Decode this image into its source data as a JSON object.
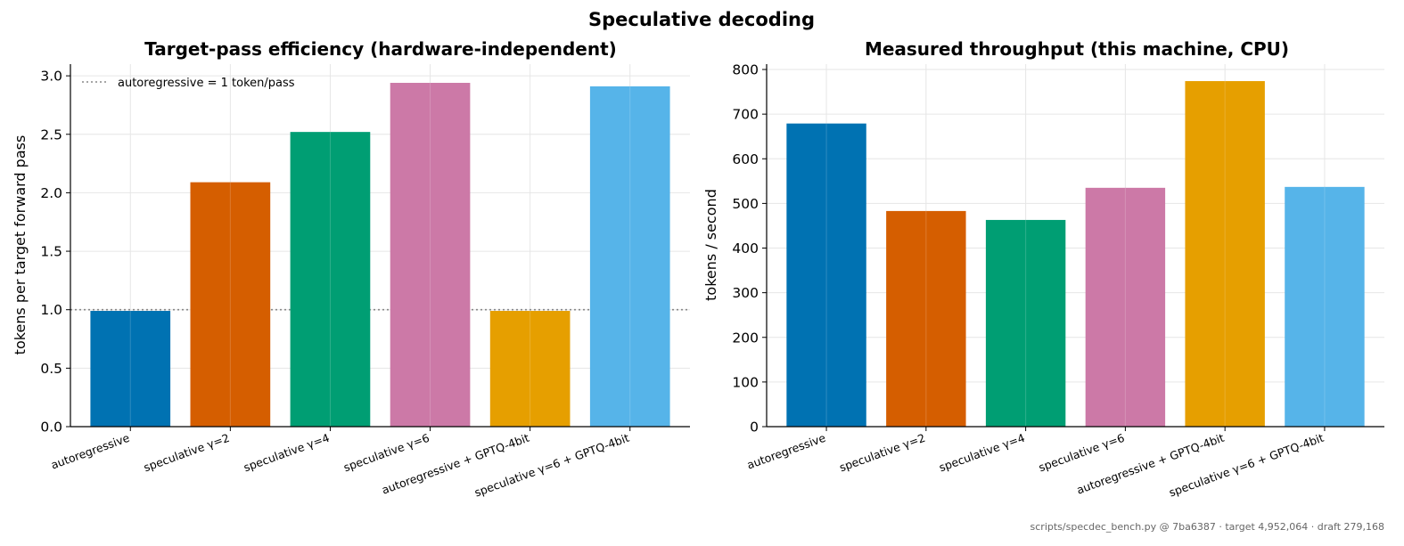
{
  "suptitle": "Speculative decoding",
  "footer": "scripts/specdec_bench.py @ 7ba6387 · target 4,952,064 · draft 279,168",
  "chart_data": [
    {
      "type": "bar",
      "title": "Target-pass efficiency (hardware-independent)",
      "xlabel": "",
      "ylabel": "tokens per target forward pass",
      "ylim": [
        0,
        3.1
      ],
      "yticks": [
        0.0,
        0.5,
        1.0,
        1.5,
        2.0,
        2.5,
        3.0
      ],
      "ytick_labels": [
        "0.0",
        "0.5",
        "1.0",
        "1.5",
        "2.0",
        "2.5",
        "3.0"
      ],
      "grid": true,
      "categories": [
        "autoregressive",
        "speculative γ=2",
        "speculative γ=4",
        "speculative γ=6",
        "autoregressive + GPTQ-4bit",
        "speculative γ=6 + GPTQ-4bit"
      ],
      "values": [
        0.99,
        2.09,
        2.52,
        2.94,
        0.99,
        2.91
      ],
      "colors": [
        "#0072b2",
        "#d55e00",
        "#009e73",
        "#cc79a7",
        "#e69f00",
        "#56b4e9"
      ],
      "reference_line": {
        "y": 1.0,
        "style": "dotted",
        "color": "#888888",
        "label": "autoregressive = 1 token/pass"
      },
      "legend": "top-left"
    },
    {
      "type": "bar",
      "title": "Measured throughput (this machine, CPU)",
      "xlabel": "",
      "ylabel": "tokens / second",
      "ylim": [
        0,
        812
      ],
      "yticks": [
        0,
        100,
        200,
        300,
        400,
        500,
        600,
        700,
        800
      ],
      "ytick_labels": [
        "0",
        "100",
        "200",
        "300",
        "400",
        "500",
        "600",
        "700",
        "800"
      ],
      "grid": true,
      "categories": [
        "autoregressive",
        "speculative γ=2",
        "speculative γ=4",
        "speculative γ=6",
        "autoregressive + GPTQ-4bit",
        "speculative γ=6 + GPTQ-4bit"
      ],
      "values": [
        679,
        483,
        463,
        535,
        774,
        537
      ],
      "colors": [
        "#0072b2",
        "#d55e00",
        "#009e73",
        "#cc79a7",
        "#e69f00",
        "#56b4e9"
      ]
    }
  ]
}
